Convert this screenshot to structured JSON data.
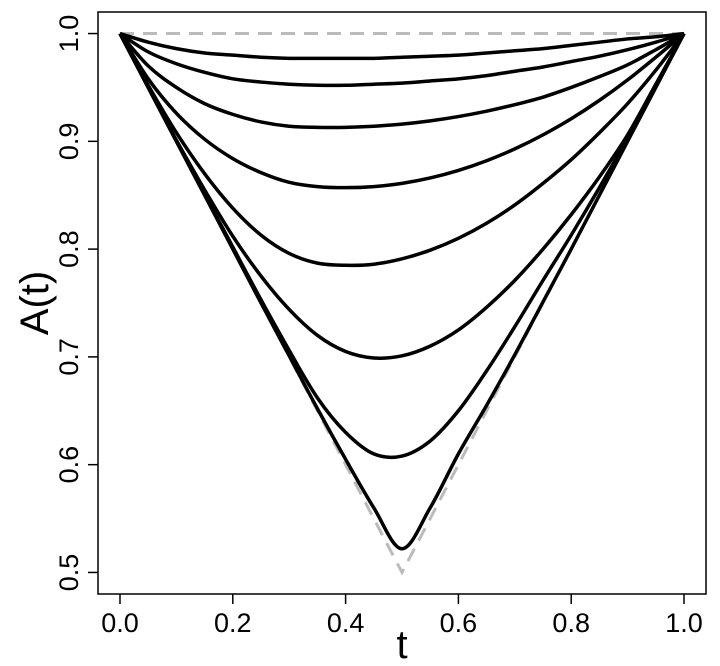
{
  "chart_data": {
    "type": "line",
    "xlabel": "t",
    "ylabel": "A(t)",
    "x": [
      0,
      0.05,
      0.1,
      0.15,
      0.2,
      0.25,
      0.3,
      0.35,
      0.4,
      0.45,
      0.5,
      0.55,
      0.6,
      0.65,
      0.7,
      0.75,
      0.8,
      0.85,
      0.9,
      0.95,
      1
    ],
    "bounds": [
      {
        "color": "#bbbbbb",
        "dashed": true,
        "x": [
          0,
          1
        ],
        "values": [
          1,
          1
        ]
      },
      {
        "color": "#bbbbbb",
        "dashed": true,
        "x": [
          0,
          0.5,
          1
        ],
        "values": [
          1,
          0.5,
          1
        ]
      }
    ],
    "series": [
      {
        "color": "#000000",
        "values": [
          1,
          0.992,
          0.986,
          0.982,
          0.98,
          0.978,
          0.977,
          0.977,
          0.977,
          0.977,
          0.978,
          0.979,
          0.98,
          0.982,
          0.984,
          0.986,
          0.989,
          0.992,
          0.995,
          0.997,
          1
        ]
      },
      {
        "color": "#000000",
        "values": [
          1,
          0.983,
          0.972,
          0.964,
          0.958,
          0.955,
          0.953,
          0.952,
          0.952,
          0.953,
          0.954,
          0.956,
          0.958,
          0.961,
          0.965,
          0.969,
          0.974,
          0.979,
          0.985,
          0.992,
          1
        ]
      },
      {
        "color": "#000000",
        "values": [
          1,
          0.97,
          0.95,
          0.935,
          0.925,
          0.918,
          0.914,
          0.913,
          0.913,
          0.914,
          0.916,
          0.919,
          0.923,
          0.928,
          0.934,
          0.941,
          0.95,
          0.96,
          0.971,
          0.985,
          1
        ]
      },
      {
        "color": "#000000",
        "values": [
          1,
          0.958,
          0.926,
          0.902,
          0.884,
          0.871,
          0.862,
          0.858,
          0.857,
          0.858,
          0.861,
          0.866,
          0.873,
          0.882,
          0.893,
          0.906,
          0.921,
          0.938,
          0.957,
          0.978,
          1
        ]
      },
      {
        "color": "#000000",
        "values": [
          1,
          0.952,
          0.908,
          0.87,
          0.838,
          0.813,
          0.796,
          0.787,
          0.785,
          0.786,
          0.791,
          0.799,
          0.81,
          0.824,
          0.841,
          0.861,
          0.883,
          0.908,
          0.935,
          0.966,
          1
        ]
      },
      {
        "color": "#000000",
        "values": [
          1,
          0.95,
          0.901,
          0.855,
          0.812,
          0.775,
          0.744,
          0.72,
          0.705,
          0.699,
          0.701,
          0.71,
          0.725,
          0.746,
          0.771,
          0.8,
          0.832,
          0.867,
          0.906,
          0.953,
          1
        ]
      },
      {
        "color": "#000000",
        "values": [
          1,
          0.95,
          0.9,
          0.851,
          0.802,
          0.753,
          0.706,
          0.662,
          0.63,
          0.61,
          0.608,
          0.622,
          0.65,
          0.687,
          0.728,
          0.771,
          0.813,
          0.857,
          0.903,
          0.951,
          1
        ]
      },
      {
        "color": "#000000",
        "values": [
          1,
          0.95,
          0.9,
          0.85,
          0.8,
          0.75,
          0.701,
          0.652,
          0.605,
          0.56,
          0.522,
          0.56,
          0.61,
          0.655,
          0.702,
          0.751,
          0.8,
          0.85,
          0.9,
          0.95,
          1
        ]
      }
    ],
    "xlim": [
      -0.039,
      1.039
    ],
    "ylim": [
      0.48,
      1.02
    ],
    "xticks": [
      {
        "value": 0,
        "label": "0.0"
      },
      0.2,
      0.4,
      0.6,
      0.8,
      {
        "value": 1,
        "label": "1.0"
      }
    ],
    "yticks": [
      0.5,
      0.6,
      0.7,
      0.8,
      0.9,
      {
        "value": 1,
        "label": "1.0"
      }
    ]
  }
}
